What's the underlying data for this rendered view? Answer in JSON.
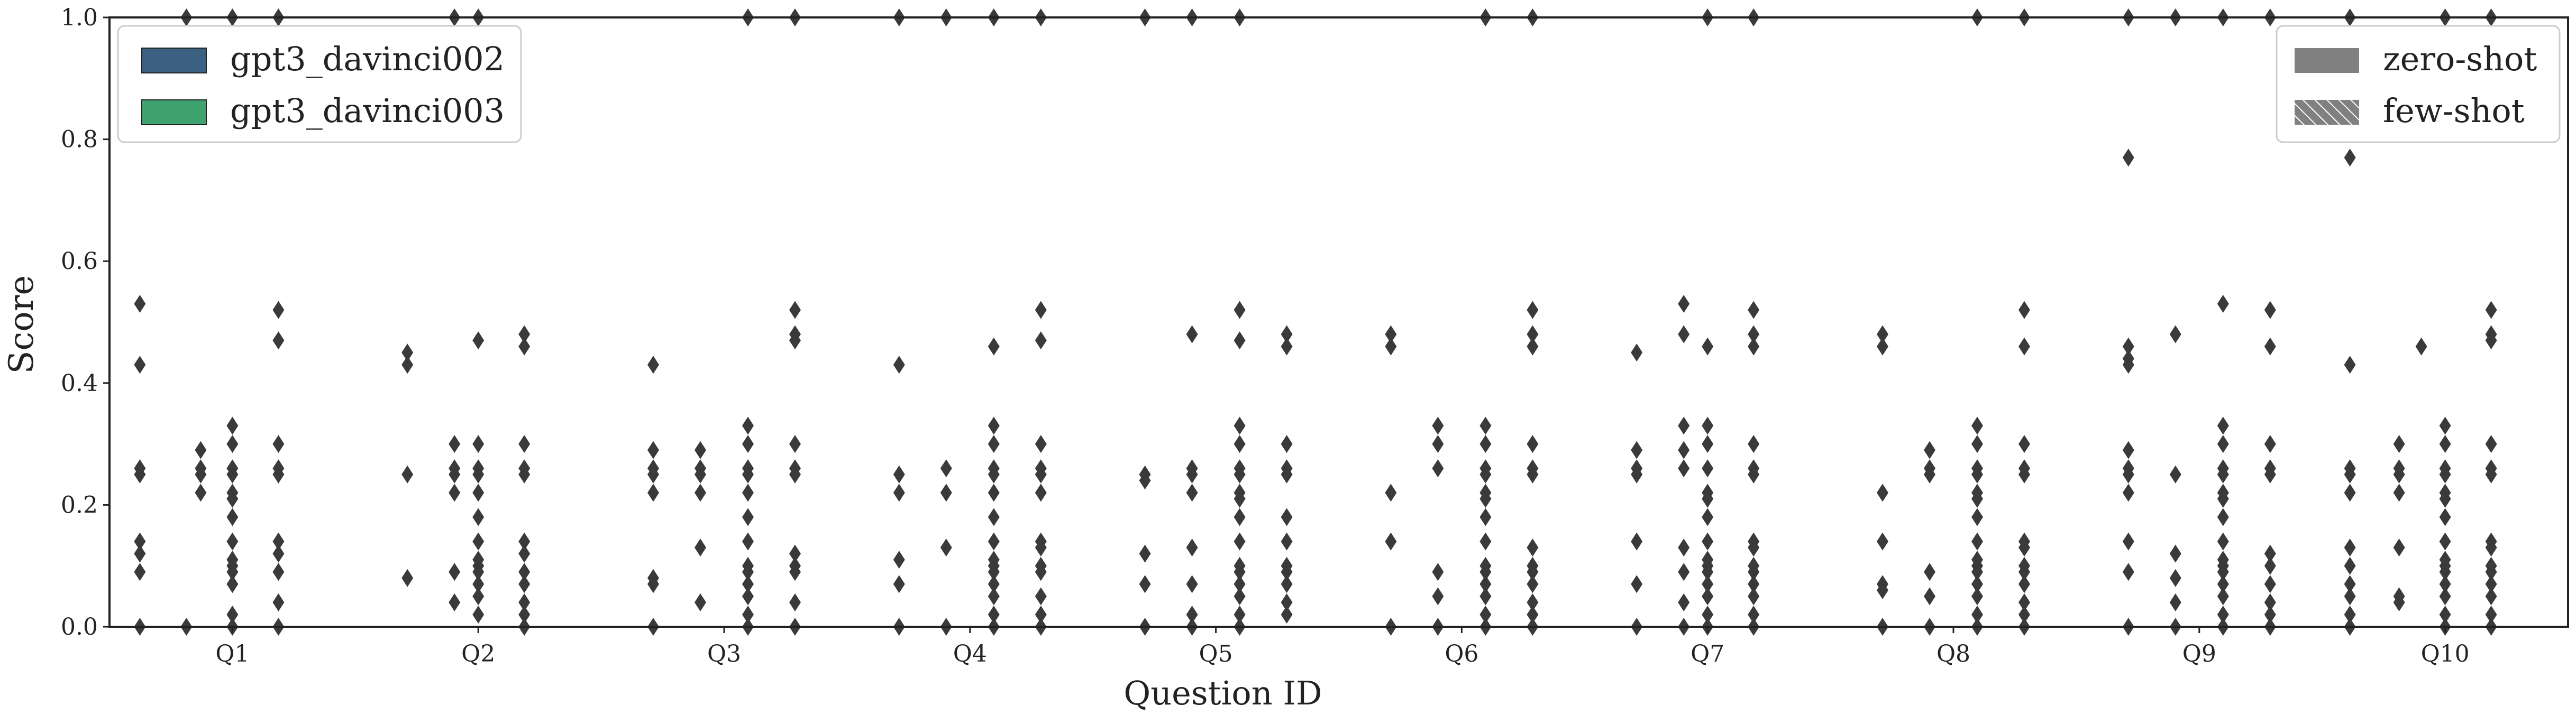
{
  "chart_data": {
    "type": "boxplot",
    "xlabel": "Question ID",
    "ylabel": "Score",
    "ylim": [
      0,
      1.0
    ],
    "yticks": [
      "0.0",
      "0.2",
      "0.4",
      "0.6",
      "0.8",
      "1.0"
    ],
    "grid": false,
    "categories": [
      "Q1",
      "Q2",
      "Q3",
      "Q4",
      "Q5",
      "Q6",
      "Q7",
      "Q8",
      "Q9",
      "Q10"
    ],
    "legend_models": {
      "placement": "top-left",
      "entries": [
        {
          "label": "gpt3_davinci002",
          "color": "#3b6081"
        },
        {
          "label": "gpt3_davinci003",
          "color": "#3fa36f"
        }
      ]
    },
    "legend_settings": {
      "placement": "top-right",
      "entries": [
        {
          "label": "zero-shot",
          "style": "solid",
          "color": "#808080"
        },
        {
          "label": "few-shot",
          "style": "hatched",
          "color": "#808080"
        }
      ]
    },
    "series": [
      {
        "model": "gpt3_davinci002",
        "setting": "zero-shot",
        "median": [
          0,
          0,
          0,
          0,
          0,
          0,
          0,
          0,
          0,
          0
        ],
        "outliers": [
          [
            0.53,
            0.43,
            0.26,
            0.25,
            0.14,
            0.12,
            0.09,
            0.0
          ],
          [
            0.45,
            0.43,
            0.25,
            0.08,
            0.0
          ],
          [
            0.43,
            0.0
          ],
          [
            0.43,
            0.0
          ],
          [
            0.0
          ],
          [
            0.0
          ],
          [
            0.0
          ],
          [
            0.0
          ],
          [
            1.0,
            0.77,
            0.0
          ],
          [
            1.0,
            0.77,
            0.43,
            0.0
          ]
        ]
      },
      {
        "model": "gpt3_davinci003",
        "setting": "zero-shot",
        "median": [
          0,
          0,
          0,
          0,
          0,
          0,
          0,
          0,
          0,
          0
        ],
        "outliers": [
          [
            0.29,
            0.26,
            0.25,
            0.22
          ],
          [
            0.29,
            0.26,
            0.25,
            0.22
          ],
          [
            0.29,
            0.26,
            0.25,
            0.22
          ],
          [
            0.26,
            0.22
          ],
          [
            0.25,
            0.24
          ],
          [
            0.22,
            0.14,
            0.0
          ],
          [
            0.29,
            0.26,
            0.25,
            0.14,
            0.07,
            0.0
          ],
          [
            0.29,
            0.26,
            0.25,
            0.22
          ],
          [
            0.29,
            0.26,
            0.25,
            0.22,
            0.14,
            0.09
          ],
          [
            0.29,
            0.26,
            0.25,
            0.22,
            0.13,
            0.07,
            0.04
          ]
        ]
      },
      {
        "model": "gpt3_davinci002",
        "setting": "few-shot",
        "median": [
          0,
          0,
          0,
          0,
          0,
          0,
          0,
          0,
          0,
          0
        ],
        "outliers": [
          [
            1.0
          ],
          [
            0.08,
            0.04,
            0.02
          ],
          [
            0.08,
            0.07,
            0.0
          ],
          [
            0.13,
            0.1,
            0.07,
            0.0
          ],
          [
            0.11,
            0.07,
            0.0
          ],
          [
            0.09,
            0.05,
            0.0
          ],
          [
            0.46,
            0.3,
            0.26,
            0.11,
            0.07,
            0.0
          ],
          [
            0.22,
            0.14,
            0.07,
            0.06,
            0.0
          ],
          [
            0.48,
            0.25,
            0.12,
            0.08,
            0.04,
            0.0
          ],
          [
            0.29,
            0.26,
            0.25,
            0.13,
            0.05,
            0.0
          ]
        ]
      },
      {
        "model": "gpt3_davinci003",
        "setting": "few-shot",
        "median": [
          0,
          0,
          0,
          0,
          0,
          0,
          0,
          0,
          0,
          0
        ],
        "outliers": [
          [
            1.0
          ],
          [
            1.0
          ],
          [
            1.0
          ],
          [
            1.0
          ],
          [
            1.0
          ],
          [
            1.0
          ],
          [
            1.0
          ],
          [
            1.0
          ],
          [
            1.0
          ],
          [
            1.0
          ]
        ]
      }
    ],
    "strips": {
      "Q1": [
        {
          "dx": -175,
          "v": [
            0.53,
            0.43,
            0.26,
            0.25,
            0.14,
            0.12,
            0.09,
            0.0
          ]
        },
        {
          "dx": -87,
          "v": [
            1.0,
            0.0
          ]
        },
        {
          "dx": -60,
          "v": [
            0.29,
            0.26,
            0.25,
            0.22
          ]
        },
        {
          "dx": 0,
          "v": [
            1.0,
            0.33,
            0.3,
            0.26,
            0.25,
            0.22,
            0.21,
            0.18,
            0.14,
            0.11,
            0.1,
            0.09,
            0.07,
            0.02,
            0.0
          ]
        },
        {
          "dx": 87,
          "v": [
            1.0,
            0.52,
            0.47,
            0.3,
            0.26,
            0.25,
            0.14,
            0.12,
            0.09,
            0.04,
            0.0
          ]
        }
      ],
      "Q2": [
        {
          "dx": -134,
          "v": [
            0.45,
            0.43,
            0.25,
            0.08
          ]
        },
        {
          "dx": -45,
          "v": [
            1.0,
            0.3,
            0.26,
            0.25,
            0.22,
            0.09,
            0.04
          ]
        },
        {
          "dx": 0,
          "v": [
            1.0,
            0.47,
            0.3,
            0.26,
            0.25,
            0.22,
            0.18,
            0.14,
            0.11,
            0.1,
            0.09,
            0.07,
            0.05,
            0.02
          ]
        },
        {
          "dx": 87,
          "v": [
            0.48,
            0.46,
            0.3,
            0.26,
            0.25,
            0.14,
            0.12,
            0.09,
            0.07,
            0.04,
            0.02,
            0.0
          ]
        }
      ],
      "Q3": [
        {
          "dx": -134,
          "v": [
            0.43,
            0.29,
            0.26,
            0.25,
            0.22,
            0.08,
            0.07,
            0.0
          ]
        },
        {
          "dx": -45,
          "v": [
            0.29,
            0.26,
            0.25,
            0.22,
            0.13,
            0.04
          ]
        },
        {
          "dx": 45,
          "v": [
            1.0,
            0.33,
            0.3,
            0.26,
            0.25,
            0.22,
            0.18,
            0.14,
            0.1,
            0.09,
            0.07,
            0.05,
            0.02,
            0.0
          ]
        },
        {
          "dx": 134,
          "v": [
            1.0,
            0.52,
            0.48,
            0.47,
            0.3,
            0.26,
            0.25,
            0.12,
            0.1,
            0.09,
            0.04,
            0.0
          ]
        }
      ],
      "Q4": [
        {
          "dx": -134,
          "v": [
            1.0,
            0.43,
            0.25,
            0.22,
            0.11,
            0.07,
            0.0
          ]
        },
        {
          "dx": -45,
          "v": [
            1.0,
            0.26,
            0.22,
            0.13,
            0.0
          ]
        },
        {
          "dx": 45,
          "v": [
            1.0,
            0.46,
            0.33,
            0.3,
            0.26,
            0.25,
            0.22,
            0.18,
            0.14,
            0.11,
            0.1,
            0.09,
            0.07,
            0.05,
            0.02,
            0.0
          ]
        },
        {
          "dx": 134,
          "v": [
            1.0,
            0.52,
            0.47,
            0.3,
            0.26,
            0.25,
            0.22,
            0.14,
            0.13,
            0.1,
            0.09,
            0.05,
            0.02,
            0.0
          ]
        }
      ],
      "Q5": [
        {
          "dx": -134,
          "v": [
            1.0,
            0.25,
            0.24,
            0.12,
            0.07,
            0.0
          ]
        },
        {
          "dx": -45,
          "v": [
            1.0,
            0.48,
            0.26,
            0.25,
            0.22,
            0.13,
            0.07,
            0.02,
            0.0
          ]
        },
        {
          "dx": 45,
          "v": [
            1.0,
            0.52,
            0.47,
            0.33,
            0.3,
            0.26,
            0.25,
            0.22,
            0.21,
            0.18,
            0.14,
            0.1,
            0.09,
            0.07,
            0.05,
            0.02,
            0.0
          ]
        },
        {
          "dx": 134,
          "v": [
            0.48,
            0.46,
            0.3,
            0.26,
            0.25,
            0.18,
            0.14,
            0.1,
            0.09,
            0.07,
            0.04,
            0.02
          ]
        }
      ],
      "Q6": [
        {
          "dx": -134,
          "v": [
            0.48,
            0.46,
            0.22,
            0.14,
            0.0
          ]
        },
        {
          "dx": -45,
          "v": [
            0.33,
            0.3,
            0.26,
            0.09,
            0.05,
            0.0
          ]
        },
        {
          "dx": 45,
          "v": [
            1.0,
            0.33,
            0.3,
            0.26,
            0.25,
            0.22,
            0.21,
            0.18,
            0.14,
            0.1,
            0.09,
            0.07,
            0.05,
            0.02,
            0.0
          ]
        },
        {
          "dx": 134,
          "v": [
            1.0,
            0.52,
            0.48,
            0.46,
            0.3,
            0.26,
            0.25,
            0.13,
            0.1,
            0.09,
            0.07,
            0.04,
            0.02,
            0.0
          ]
        }
      ],
      "Q7": [
        {
          "dx": -134,
          "v": [
            0.45,
            0.29,
            0.26,
            0.25,
            0.14,
            0.07,
            0.0
          ]
        },
        {
          "dx": -45,
          "v": [
            0.53,
            0.48,
            0.33,
            0.29,
            0.26,
            0.13,
            0.09,
            0.04,
            0.0
          ]
        },
        {
          "dx": 0,
          "v": [
            1.0,
            0.46,
            0.33,
            0.3,
            0.26,
            0.22,
            0.21,
            0.18,
            0.14,
            0.11,
            0.1,
            0.09,
            0.07,
            0.05,
            0.02,
            0.0
          ]
        },
        {
          "dx": 87,
          "v": [
            1.0,
            0.52,
            0.48,
            0.46,
            0.3,
            0.26,
            0.25,
            0.14,
            0.13,
            0.1,
            0.09,
            0.07,
            0.05,
            0.02,
            0.0
          ]
        }
      ],
      "Q8": [
        {
          "dx": -134,
          "v": [
            0.48,
            0.46,
            0.22,
            0.14,
            0.07,
            0.06,
            0.0
          ]
        },
        {
          "dx": -45,
          "v": [
            0.29,
            0.26,
            0.25,
            0.09,
            0.05,
            0.0
          ]
        },
        {
          "dx": 45,
          "v": [
            1.0,
            0.33,
            0.3,
            0.26,
            0.25,
            0.22,
            0.21,
            0.18,
            0.14,
            0.11,
            0.1,
            0.09,
            0.07,
            0.05,
            0.02,
            0.0
          ]
        },
        {
          "dx": 134,
          "v": [
            1.0,
            0.52,
            0.46,
            0.3,
            0.26,
            0.25,
            0.14,
            0.13,
            0.1,
            0.09,
            0.07,
            0.04,
            0.02,
            0.0
          ]
        }
      ],
      "Q9": [
        {
          "dx": -134,
          "v": [
            1.0,
            0.77,
            0.46,
            0.44,
            0.43,
            0.29,
            0.26,
            0.25,
            0.22,
            0.14,
            0.09,
            0.0
          ]
        },
        {
          "dx": -45,
          "v": [
            1.0,
            0.48,
            0.25,
            0.12,
            0.08,
            0.04,
            0.0
          ]
        },
        {
          "dx": 45,
          "v": [
            1.0,
            0.53,
            0.33,
            0.3,
            0.26,
            0.25,
            0.22,
            0.21,
            0.18,
            0.14,
            0.11,
            0.1,
            0.09,
            0.07,
            0.05,
            0.02,
            0.0
          ]
        },
        {
          "dx": 134,
          "v": [
            1.0,
            0.52,
            0.46,
            0.3,
            0.26,
            0.25,
            0.12,
            0.1,
            0.07,
            0.04,
            0.02,
            0.0
          ]
        }
      ],
      "Q10": [
        {
          "dx": -180,
          "v": [
            1.0,
            0.77,
            0.43,
            0.26,
            0.25,
            0.22,
            0.13,
            0.1,
            0.07,
            0.05,
            0.02,
            0.0
          ]
        },
        {
          "dx": -87,
          "v": [
            0.3,
            0.26,
            0.25,
            0.22,
            0.13,
            0.05,
            0.04
          ]
        },
        {
          "dx": -45,
          "v": [
            0.46
          ]
        },
        {
          "dx": 0,
          "v": [
            1.0,
            0.33,
            0.3,
            0.26,
            0.25,
            0.22,
            0.21,
            0.18,
            0.14,
            0.11,
            0.1,
            0.09,
            0.07,
            0.05,
            0.02,
            0.0
          ]
        },
        {
          "dx": 87,
          "v": [
            1.0,
            0.52,
            0.48,
            0.47,
            0.3,
            0.26,
            0.25,
            0.14,
            0.13,
            0.1,
            0.09,
            0.07,
            0.05,
            0.02,
            0.0
          ]
        }
      ]
    }
  }
}
